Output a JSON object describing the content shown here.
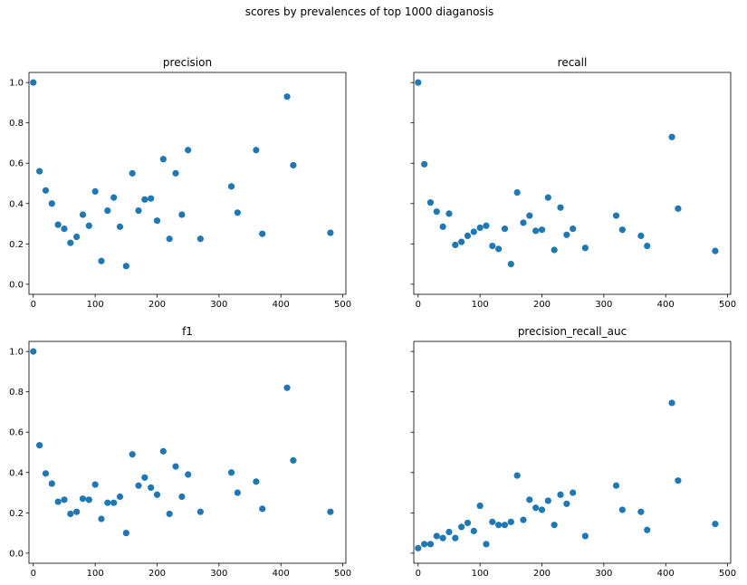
{
  "figure": {
    "suptitle": "scores by prevalences of top 1000 diaganosis",
    "marker_color": "#1f77b4"
  },
  "chart_data": [
    {
      "type": "scatter",
      "title": "precision",
      "xlim": [
        -7,
        505
      ],
      "ylim": [
        -0.05,
        1.05
      ],
      "xticks": [
        0,
        100,
        200,
        300,
        400,
        500
      ],
      "yticks": [
        0.0,
        0.2,
        0.4,
        0.6,
        0.8,
        1.0
      ],
      "show_yticklabels": true,
      "grid": false,
      "points": [
        [
          0,
          1.0
        ],
        [
          10,
          0.56
        ],
        [
          20,
          0.465
        ],
        [
          30,
          0.4
        ],
        [
          40,
          0.295
        ],
        [
          50,
          0.275
        ],
        [
          60,
          0.205
        ],
        [
          70,
          0.235
        ],
        [
          80,
          0.345
        ],
        [
          90,
          0.29
        ],
        [
          100,
          0.46
        ],
        [
          110,
          0.115
        ],
        [
          120,
          0.365
        ],
        [
          130,
          0.43
        ],
        [
          140,
          0.285
        ],
        [
          150,
          0.09
        ],
        [
          160,
          0.55
        ],
        [
          170,
          0.365
        ],
        [
          180,
          0.42
        ],
        [
          190,
          0.425
        ],
        [
          200,
          0.315
        ],
        [
          210,
          0.62
        ],
        [
          220,
          0.225
        ],
        [
          230,
          0.55
        ],
        [
          240,
          0.345
        ],
        [
          250,
          0.665
        ],
        [
          270,
          0.225
        ],
        [
          320,
          0.485
        ],
        [
          330,
          0.355
        ],
        [
          360,
          0.665
        ],
        [
          370,
          0.25
        ],
        [
          410,
          0.93
        ],
        [
          420,
          0.59
        ],
        [
          480,
          0.255
        ]
      ]
    },
    {
      "type": "scatter",
      "title": "recall",
      "xlim": [
        -7,
        505
      ],
      "ylim": [
        -0.05,
        1.05
      ],
      "xticks": [
        0,
        100,
        200,
        300,
        400,
        500
      ],
      "yticks": [
        0.0,
        0.2,
        0.4,
        0.6,
        0.8,
        1.0
      ],
      "show_yticklabels": false,
      "grid": false,
      "points": [
        [
          0,
          1.0
        ],
        [
          10,
          0.595
        ],
        [
          20,
          0.405
        ],
        [
          30,
          0.36
        ],
        [
          40,
          0.285
        ],
        [
          50,
          0.35
        ],
        [
          60,
          0.195
        ],
        [
          70,
          0.21
        ],
        [
          80,
          0.24
        ],
        [
          90,
          0.26
        ],
        [
          100,
          0.28
        ],
        [
          110,
          0.29
        ],
        [
          120,
          0.19
        ],
        [
          130,
          0.175
        ],
        [
          140,
          0.275
        ],
        [
          150,
          0.1
        ],
        [
          160,
          0.455
        ],
        [
          170,
          0.305
        ],
        [
          180,
          0.34
        ],
        [
          190,
          0.265
        ],
        [
          200,
          0.27
        ],
        [
          210,
          0.43
        ],
        [
          220,
          0.17
        ],
        [
          230,
          0.38
        ],
        [
          240,
          0.245
        ],
        [
          250,
          0.275
        ],
        [
          270,
          0.18
        ],
        [
          320,
          0.34
        ],
        [
          330,
          0.27
        ],
        [
          360,
          0.24
        ],
        [
          370,
          0.19
        ],
        [
          410,
          0.73
        ],
        [
          420,
          0.375
        ],
        [
          480,
          0.165
        ]
      ]
    },
    {
      "type": "scatter",
      "title": "f1",
      "xlim": [
        -7,
        505
      ],
      "ylim": [
        -0.05,
        1.05
      ],
      "xticks": [
        0,
        100,
        200,
        300,
        400,
        500
      ],
      "yticks": [
        0.0,
        0.2,
        0.4,
        0.6,
        0.8,
        1.0
      ],
      "show_yticklabels": true,
      "grid": false,
      "points": [
        [
          0,
          1.0
        ],
        [
          10,
          0.535
        ],
        [
          20,
          0.395
        ],
        [
          30,
          0.345
        ],
        [
          40,
          0.255
        ],
        [
          50,
          0.265
        ],
        [
          60,
          0.195
        ],
        [
          70,
          0.205
        ],
        [
          80,
          0.27
        ],
        [
          90,
          0.265
        ],
        [
          100,
          0.34
        ],
        [
          110,
          0.17
        ],
        [
          120,
          0.25
        ],
        [
          130,
          0.25
        ],
        [
          140,
          0.28
        ],
        [
          150,
          0.1
        ],
        [
          160,
          0.49
        ],
        [
          170,
          0.335
        ],
        [
          180,
          0.375
        ],
        [
          190,
          0.325
        ],
        [
          200,
          0.29
        ],
        [
          210,
          0.505
        ],
        [
          220,
          0.195
        ],
        [
          230,
          0.43
        ],
        [
          240,
          0.28
        ],
        [
          250,
          0.39
        ],
        [
          270,
          0.205
        ],
        [
          320,
          0.4
        ],
        [
          330,
          0.3
        ],
        [
          360,
          0.355
        ],
        [
          370,
          0.22
        ],
        [
          410,
          0.82
        ],
        [
          420,
          0.46
        ],
        [
          480,
          0.205
        ]
      ]
    },
    {
      "type": "scatter",
      "title": "precision_recall_auc",
      "xlim": [
        -7,
        505
      ],
      "ylim": [
        -0.05,
        1.05
      ],
      "xticks": [
        0,
        100,
        200,
        300,
        400,
        500
      ],
      "yticks": [
        0.0,
        0.2,
        0.4,
        0.6,
        0.8,
        1.0
      ],
      "show_yticklabels": false,
      "grid": false,
      "points": [
        [
          0,
          0.025
        ],
        [
          10,
          0.045
        ],
        [
          20,
          0.045
        ],
        [
          30,
          0.085
        ],
        [
          40,
          0.075
        ],
        [
          50,
          0.105
        ],
        [
          60,
          0.075
        ],
        [
          70,
          0.13
        ],
        [
          80,
          0.15
        ],
        [
          90,
          0.11
        ],
        [
          100,
          0.235
        ],
        [
          110,
          0.045
        ],
        [
          120,
          0.155
        ],
        [
          130,
          0.14
        ],
        [
          140,
          0.14
        ],
        [
          150,
          0.155
        ],
        [
          160,
          0.385
        ],
        [
          170,
          0.165
        ],
        [
          180,
          0.265
        ],
        [
          190,
          0.225
        ],
        [
          200,
          0.215
        ],
        [
          210,
          0.26
        ],
        [
          220,
          0.14
        ],
        [
          230,
          0.29
        ],
        [
          240,
          0.245
        ],
        [
          250,
          0.3
        ],
        [
          270,
          0.085
        ],
        [
          320,
          0.335
        ],
        [
          330,
          0.215
        ],
        [
          360,
          0.205
        ],
        [
          370,
          0.115
        ],
        [
          410,
          0.745
        ],
        [
          420,
          0.36
        ],
        [
          480,
          0.145
        ]
      ]
    }
  ]
}
